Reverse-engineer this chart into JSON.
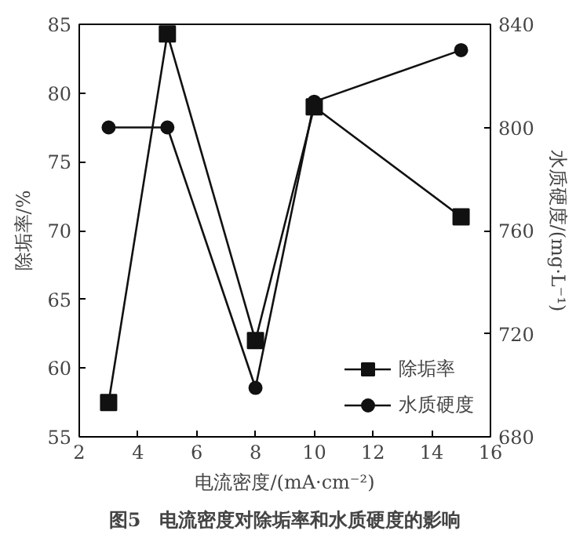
{
  "chart_data": {
    "type": "line",
    "title": "图5　电流密度对除垢率和水质硬度的影响",
    "xlabel": "电流密度/(mA·cm⁻²)",
    "ylabel": "除垢率/%",
    "y2label": "水质硬度/(mg·L⁻¹)",
    "x": [
      3,
      5,
      8,
      10,
      15
    ],
    "series": [
      {
        "name": "除垢率",
        "color": "#111111",
        "values": [
          57.5,
          84.3,
          62,
          79,
          71
        ],
        "marker": "square"
      },
      {
        "name": "水质硬度",
        "color": "#111111",
        "values": [
          800,
          800,
          699,
          810,
          830
        ],
        "marker": "circle",
        "axis": "y2"
      }
    ],
    "xlim": [
      2,
      16
    ],
    "xticks": [
      2,
      4,
      6,
      8,
      10,
      12,
      14,
      16
    ],
    "ylim": [
      55,
      85
    ],
    "yticks": [
      55,
      60,
      65,
      70,
      75,
      80,
      85
    ],
    "y2lim": [
      680,
      840
    ],
    "y2ticks": [
      680,
      720,
      760,
      800,
      840
    ],
    "grid": false,
    "legend": "bottom right",
    "line_style": "solid"
  }
}
